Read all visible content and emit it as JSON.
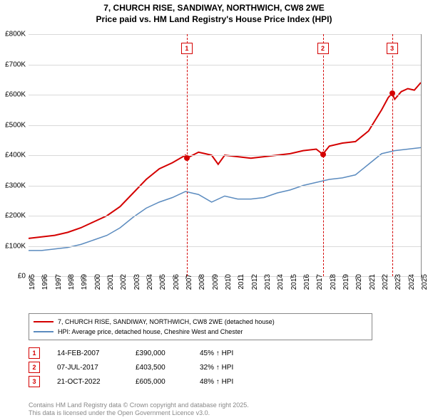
{
  "title_line1": "7, CHURCH RISE, SANDIWAY, NORTHWICH, CW8 2WE",
  "title_line2": "Price paid vs. HM Land Registry's House Price Index (HPI)",
  "chart": {
    "type": "line",
    "background_color": "#ffffff",
    "grid_color": "#d9d9d9",
    "axis_color": "#888888",
    "ylim": [
      0,
      800
    ],
    "ytick_step": 100,
    "ytick_prefix": "£",
    "ytick_suffix": "K",
    "xlim": [
      1995,
      2025
    ],
    "xticks": [
      1995,
      1996,
      1997,
      1998,
      1999,
      2000,
      2001,
      2002,
      2003,
      2004,
      2005,
      2006,
      2007,
      2008,
      2009,
      2010,
      2011,
      2012,
      2013,
      2014,
      2015,
      2016,
      2017,
      2018,
      2019,
      2020,
      2021,
      2022,
      2023,
      2024,
      2025
    ],
    "series": [
      {
        "name": "price_paid",
        "color": "#d40000",
        "width": 2,
        "points": [
          [
            1995,
            125
          ],
          [
            1996,
            130
          ],
          [
            1997,
            135
          ],
          [
            1998,
            145
          ],
          [
            1999,
            160
          ],
          [
            2000,
            180
          ],
          [
            2001,
            200
          ],
          [
            2002,
            230
          ],
          [
            2003,
            275
          ],
          [
            2004,
            320
          ],
          [
            2005,
            355
          ],
          [
            2006,
            375
          ],
          [
            2007,
            400
          ],
          [
            2007.1,
            390
          ],
          [
            2008,
            410
          ],
          [
            2008.5,
            405
          ],
          [
            2009,
            400
          ],
          [
            2009.5,
            370
          ],
          [
            2010,
            400
          ],
          [
            2011,
            395
          ],
          [
            2012,
            390
          ],
          [
            2013,
            395
          ],
          [
            2014,
            400
          ],
          [
            2015,
            405
          ],
          [
            2016,
            415
          ],
          [
            2017,
            420
          ],
          [
            2017.5,
            403
          ],
          [
            2018,
            430
          ],
          [
            2019,
            440
          ],
          [
            2020,
            445
          ],
          [
            2021,
            480
          ],
          [
            2022,
            550
          ],
          [
            2022.5,
            590
          ],
          [
            2022.8,
            605
          ],
          [
            2023,
            585
          ],
          [
            2023.5,
            610
          ],
          [
            2024,
            620
          ],
          [
            2024.5,
            615
          ],
          [
            2025,
            640
          ]
        ]
      },
      {
        "name": "hpi",
        "color": "#5b8bbf",
        "width": 1.5,
        "points": [
          [
            1995,
            85
          ],
          [
            1996,
            85
          ],
          [
            1997,
            90
          ],
          [
            1998,
            95
          ],
          [
            1999,
            105
          ],
          [
            2000,
            120
          ],
          [
            2001,
            135
          ],
          [
            2002,
            160
          ],
          [
            2003,
            195
          ],
          [
            2004,
            225
          ],
          [
            2005,
            245
          ],
          [
            2006,
            260
          ],
          [
            2007,
            280
          ],
          [
            2008,
            270
          ],
          [
            2009,
            245
          ],
          [
            2010,
            265
          ],
          [
            2011,
            255
          ],
          [
            2012,
            255
          ],
          [
            2013,
            260
          ],
          [
            2014,
            275
          ],
          [
            2015,
            285
          ],
          [
            2016,
            300
          ],
          [
            2017,
            310
          ],
          [
            2018,
            320
          ],
          [
            2019,
            325
          ],
          [
            2020,
            335
          ],
          [
            2021,
            370
          ],
          [
            2022,
            405
          ],
          [
            2023,
            415
          ],
          [
            2024,
            420
          ],
          [
            2025,
            425
          ]
        ]
      }
    ],
    "markers": [
      {
        "n": "1",
        "x": 2007.1,
        "y": 390,
        "color": "#d40000"
      },
      {
        "n": "2",
        "x": 2017.5,
        "y": 403,
        "color": "#d40000"
      },
      {
        "n": "3",
        "x": 2022.8,
        "y": 605,
        "color": "#d40000"
      }
    ]
  },
  "legend": {
    "items": [
      {
        "color": "#d40000",
        "width": 2,
        "label": "7, CHURCH RISE, SANDIWAY, NORTHWICH, CW8 2WE (detached house)"
      },
      {
        "color": "#5b8bbf",
        "width": 1.5,
        "label": "HPI: Average price, detached house, Cheshire West and Chester"
      }
    ]
  },
  "events": [
    {
      "n": "1",
      "date": "14-FEB-2007",
      "price": "£390,000",
      "pct": "45% ↑ HPI",
      "color": "#d40000"
    },
    {
      "n": "2",
      "date": "07-JUL-2017",
      "price": "£403,500",
      "pct": "32% ↑ HPI",
      "color": "#d40000"
    },
    {
      "n": "3",
      "date": "21-OCT-2022",
      "price": "£605,000",
      "pct": "48% ↑ HPI",
      "color": "#d40000"
    }
  ],
  "footer_line1": "Contains HM Land Registry data © Crown copyright and database right 2025.",
  "footer_line2": "This data is licensed under the Open Government Licence v3.0."
}
